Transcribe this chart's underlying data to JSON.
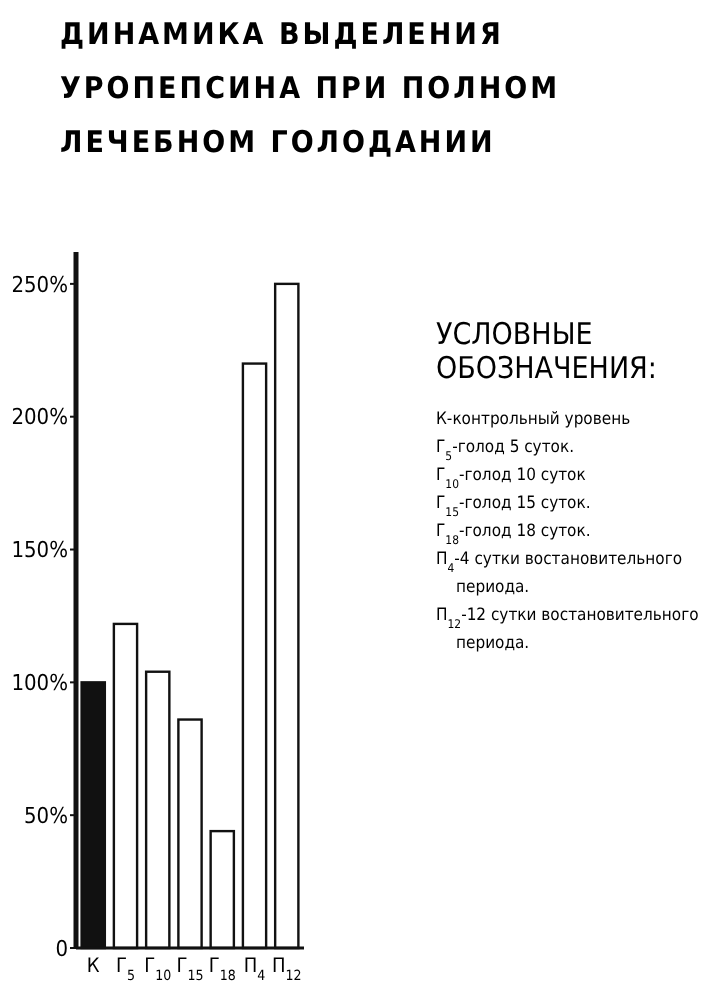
{
  "chart_data": {
    "type": "bar",
    "title": "ДИНАМИКА ВЫДЕЛЕНИЯ\nУРОПЕПСИНА ПРИ ПОЛНОМ\nЛЕЧЕБНОМ ГОЛОДАНИИ",
    "categories": [
      "К",
      "Г$_{5}$",
      "Г$_{10}$",
      "Г$_{15}$",
      "Г$_{18}$",
      "П$_{4}$",
      "П$_{12}$"
    ],
    "values": [
      100,
      122,
      104,
      86,
      44,
      220,
      250
    ],
    "colors": [
      "#111111",
      "#ffffff",
      "#ffffff",
      "#ffffff",
      "#ffffff",
      "#ffffff",
      "#ffffff"
    ],
    "ylim": [
      0,
      262
    ],
    "yticks": [
      {
        "value": 0,
        "label": "0"
      },
      {
        "value": 50,
        "label": "50%"
      },
      {
        "value": 100,
        "label": "100%"
      },
      {
        "value": 150,
        "label": "150%"
      },
      {
        "value": 200,
        "label": "200%"
      },
      {
        "value": 250,
        "label": "250%"
      }
    ],
    "grid": false,
    "annotations": [
      "УСЛОВНЫЕ\nОБОЗНАЧЕНИЯ:",
      "К-контрольный уровень",
      "Г$_{5}$-голод 5 суток.",
      "Г$_{10}$-голод 10 суток",
      "Г$_{15}$-голод 15 суток.",
      "Г$_{18}$-голод 18 суток.",
      "П$_{4}$-4 сутки востановительного\nпериода.",
      "П$_{12}$-12 сутки востановительного\nпериода."
    ]
  }
}
